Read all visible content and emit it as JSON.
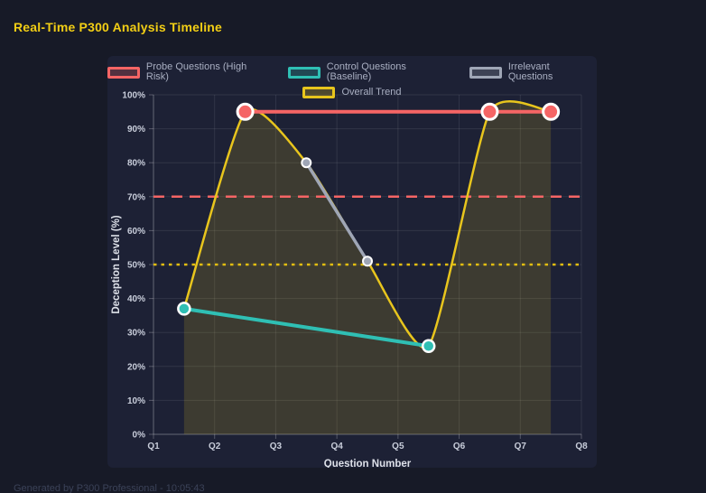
{
  "page": {
    "title": "Real-Time P300 Analysis Timeline",
    "footer": "Generated by P300 Professional - 10:05:43"
  },
  "colors": {
    "page_background": "#171a27",
    "card_background": "#1d2135",
    "title_text": "#f2ce15",
    "axis_title_text": "#dde0e8",
    "tick_text": "#c9cedb",
    "legend_text": "#a9afc2",
    "grid": "rgba(255,255,255,0.09)",
    "spine": "rgba(255,255,255,0.25)",
    "marker_ring": "#ffffff",
    "footer_text": "#3b4258"
  },
  "chart_data": {
    "type": "line",
    "title": "Real-Time P300 Analysis Timeline",
    "xlabel": "Question Number",
    "ylabel": "Deception Level (%)",
    "xlim": [
      1,
      8
    ],
    "ylim": [
      0,
      100
    ],
    "grid": true,
    "legend_position": "top",
    "x_ticks": [
      "Q1",
      "Q2",
      "Q3",
      "Q4",
      "Q5",
      "Q6",
      "Q7",
      "Q8"
    ],
    "y_ticks": [
      "0%",
      "10%",
      "20%",
      "30%",
      "40%",
      "50%",
      "60%",
      "70%",
      "80%",
      "90%",
      "100%"
    ],
    "y_tick_values": [
      0,
      10,
      20,
      30,
      40,
      50,
      60,
      70,
      80,
      90,
      100
    ],
    "x_tick_values": [
      1,
      2,
      3,
      4,
      5,
      6,
      7,
      8
    ],
    "series": [
      {
        "name": "Probe Questions (High Risk)",
        "color": "#f56565",
        "x": [
          2.5,
          6.5,
          7.5
        ],
        "y": [
          95,
          95,
          95
        ],
        "line_width": 4,
        "marker_radius": 8.5,
        "marker_ring_width": 3,
        "smooth": false,
        "fill": false
      },
      {
        "name": "Control Questions (Baseline)",
        "color": "#2fbfb4",
        "x": [
          1.5,
          5.5
        ],
        "y": [
          37,
          26
        ],
        "line_width": 4,
        "marker_radius": 6.5,
        "marker_ring_width": 2.5,
        "smooth": false,
        "fill": false
      },
      {
        "name": "Irrelevant Questions",
        "color": "#9fa6b6",
        "x": [
          3.5,
          4.5
        ],
        "y": [
          80,
          51
        ],
        "line_width": 3.5,
        "marker_radius": 5,
        "marker_ring_width": 2,
        "smooth": false,
        "fill": false
      },
      {
        "name": "Overall Trend",
        "color": "#e8c51d",
        "x": [
          1.5,
          2.5,
          3.5,
          4.5,
          5.5,
          6.5,
          7.5
        ],
        "y": [
          37,
          95,
          80,
          51,
          26,
          95,
          95
        ],
        "line_width": 2.5,
        "marker_radius": 0,
        "marker_ring_width": 0,
        "smooth": true,
        "fill": true,
        "fill_opacity": 0.16
      }
    ],
    "thresholds": [
      {
        "value": 70,
        "color": "#f56565",
        "style": "dashed",
        "line_width": 2.5
      },
      {
        "value": 50,
        "color": "#e2bd10",
        "style": "dotted",
        "line_width": 2.5
      }
    ]
  }
}
